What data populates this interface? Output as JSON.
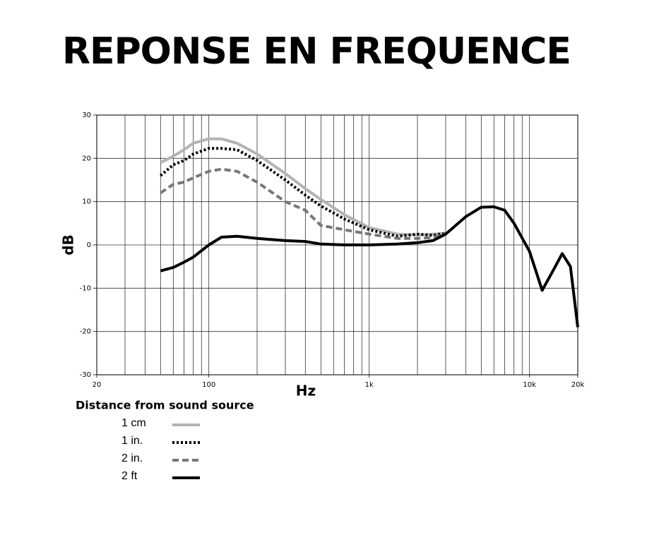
{
  "chart_data": {
    "type": "line",
    "title": "REPONSE EN FREQUENCE",
    "x_label": "Hz",
    "y_label": "dB",
    "legend_title": "Distance from sound source",
    "x_log": true,
    "grid": true,
    "x": [
      50,
      60,
      70,
      80,
      100,
      120,
      150,
      200,
      300,
      400,
      500,
      700,
      1000,
      1500,
      2000,
      2500,
      3000,
      4000,
      5000,
      6000,
      7000,
      8000,
      10000,
      12000,
      14000,
      16000,
      18000,
      20000
    ],
    "series": [
      {
        "name": "1 cm",
        "color": "#b3b3b3",
        "style": "solid",
        "values": [
          19,
          20.5,
          22,
          23.5,
          24.5,
          24.5,
          23.5,
          21,
          16.5,
          13,
          10.5,
          7,
          4,
          2.5,
          2.3,
          2.5,
          2.7,
          null,
          null,
          null,
          null,
          null,
          null,
          null,
          null,
          null,
          null,
          null
        ]
      },
      {
        "name": "1 in.",
        "color": "#000000",
        "style": "dotted",
        "values": [
          16,
          18.5,
          19.5,
          21,
          22.3,
          22.3,
          22,
          19.5,
          15,
          11.5,
          9,
          6,
          3.5,
          2,
          2.5,
          2.2,
          2.7,
          null,
          null,
          null,
          null,
          null,
          null,
          null,
          null,
          null,
          null,
          null
        ]
      },
      {
        "name": "2 in.",
        "color": "#777777",
        "style": "dashed",
        "values": [
          12,
          14,
          14.5,
          15.5,
          17,
          17.5,
          17,
          14.5,
          10,
          8,
          4.5,
          3.5,
          2.5,
          1.5,
          1.5,
          1.7,
          2.7,
          null,
          null,
          null,
          null,
          null,
          null,
          null,
          null,
          null,
          null,
          null
        ]
      },
      {
        "name": "2 ft",
        "color": "#000000",
        "style": "thick",
        "values": [
          -6,
          -5.2,
          -4,
          -2.8,
          0,
          1.8,
          2,
          1.5,
          1,
          0.8,
          0.2,
          0,
          0,
          0.2,
          0.5,
          1,
          2.5,
          6.5,
          8.7,
          8.8,
          8,
          5,
          -1.5,
          -10.5,
          -6,
          -2,
          -5,
          -19
        ]
      }
    ],
    "xlim": [
      20,
      20000
    ],
    "ylim": [
      -30,
      30
    ],
    "xticks": [
      20,
      100,
      {
        "value": 1000,
        "label": "1k"
      },
      {
        "value": 10000,
        "label": "10k"
      },
      {
        "value": 20000,
        "label": "20k"
      }
    ],
    "xgrid_minor": [
      30,
      40,
      50,
      60,
      70,
      80,
      90,
      200,
      300,
      400,
      500,
      600,
      700,
      800,
      900,
      2000,
      3000,
      4000,
      5000,
      6000,
      7000,
      8000,
      9000
    ],
    "yticks": [
      30,
      20,
      10,
      0,
      -10,
      -20,
      -30
    ]
  }
}
